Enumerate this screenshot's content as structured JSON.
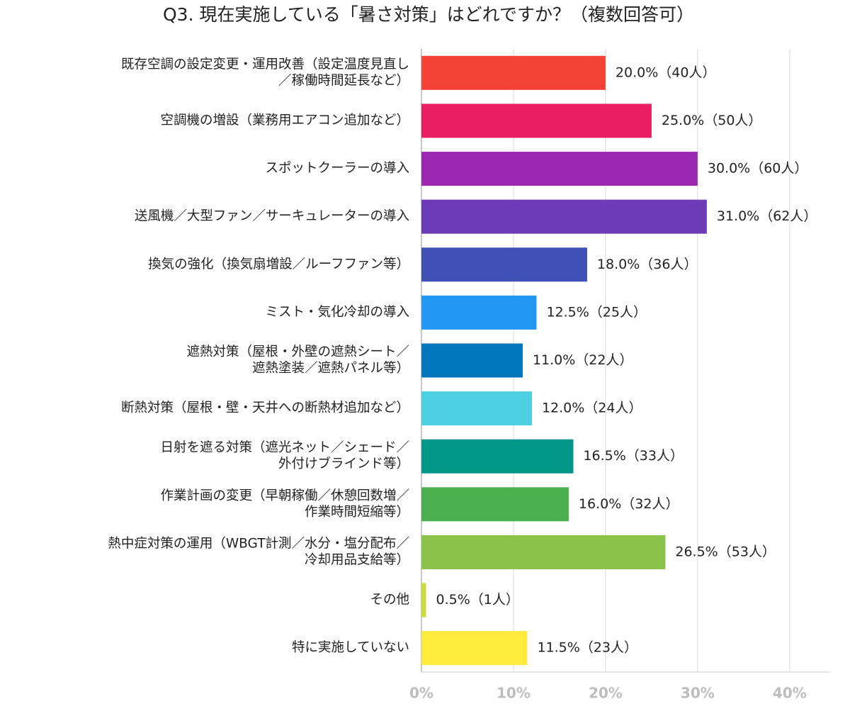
{
  "chart_data": {
    "type": "hbar",
    "title": "Q3. 現在実施している「暑さ対策」はどれですか？（複数回答可）",
    "categories": [
      "既存空調の設定変更・運用改善（設定温度見直し\n／稼働時間延長など）",
      "空調機の増設（業務用エアコン追加など）",
      "スポットクーラーの導入",
      "送風機／大型ファン／サーキュレーターの導入",
      "換気の強化（換気扇増設／ルーフファン等）",
      "ミスト・気化冷却の導入",
      "遮熱対策（屋根・外壁の遮熱シート／\n遮熱塗装／遮熱パネル等）",
      "断熱対策（屋根・壁・天井への断熱材追加など）",
      "日射を遮る対策（遮光ネット／シェード／\n外付けブラインド等）",
      "作業計画の変更（早朝稼働／休憩回数増／\n作業時間短縮等）",
      "熱中症対策の運用（WBGT計測／水分・塩分配布／\n冷却用品支給等）",
      "その他",
      "特に実施していない"
    ],
    "values": [
      20.0,
      25.0,
      30.0,
      31.0,
      18.0,
      12.5,
      11.0,
      12.0,
      16.5,
      16.0,
      26.5,
      0.5,
      11.5
    ],
    "value_labels": [
      "20.0%（40人）",
      "25.0%（50人）",
      "30.0%（60人）",
      "31.0%（62人）",
      "18.0%（36人）",
      "12.5%（25人）",
      "11.0%（22人）",
      "12.0%（24人）",
      "16.5%（33人）",
      "16.0%（32人）",
      "26.5%（53人）",
      "0.5%（1人）",
      "11.5%（23人）"
    ],
    "colors": [
      "#f44336",
      "#e91e63",
      "#9c27b0",
      "#6e3bb8",
      "#3f51b5",
      "#2196f3",
      "#0277bd",
      "#4dd0e1",
      "#009688",
      "#4caf50",
      "#8bc34a",
      "#cddc39",
      "#ffeb3b"
    ],
    "xlim": [
      0,
      44.4
    ],
    "xticks": [
      {
        "value": 0,
        "label": "0%"
      },
      {
        "value": 10,
        "label": "10%"
      },
      {
        "value": 20,
        "label": "20%"
      },
      {
        "value": 30,
        "label": "30%"
      },
      {
        "value": 40,
        "label": "40%"
      }
    ],
    "grid": true
  }
}
